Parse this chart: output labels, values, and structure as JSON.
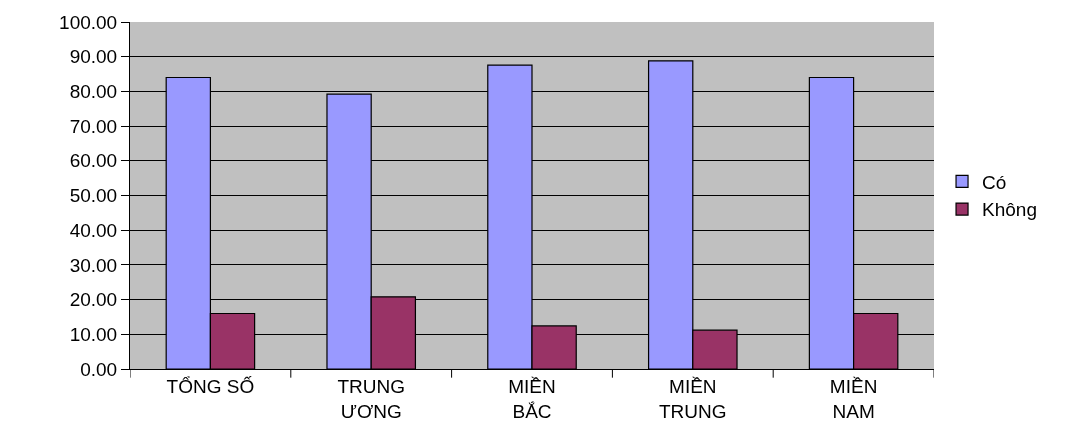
{
  "chart_data": {
    "type": "bar",
    "categories": [
      "TỔNG SỐ",
      "TRUNG\nƯƠNG",
      "MIỀN\nBẮC",
      "MIỀN\nTRUNG",
      "MIỀN\nNAM"
    ],
    "series": [
      {
        "name": "Có",
        "color": "#9999ff",
        "values": [
          84.0,
          79.2,
          87.6,
          88.8,
          84.0
        ]
      },
      {
        "name": "Không",
        "color": "#993366",
        "values": [
          16.0,
          20.8,
          12.4,
          11.2,
          16.0
        ]
      }
    ],
    "ylim": [
      0,
      100
    ],
    "yticks": [
      {
        "value": 0,
        "label": "0.00"
      },
      {
        "value": 10,
        "label": "10.00"
      },
      {
        "value": 20,
        "label": "20.00"
      },
      {
        "value": 30,
        "label": "30.00"
      },
      {
        "value": 40,
        "label": "40.00"
      },
      {
        "value": 50,
        "label": "50.00"
      },
      {
        "value": 60,
        "label": "60.00"
      },
      {
        "value": 70,
        "label": "70.00"
      },
      {
        "value": 80,
        "label": "80.00"
      },
      {
        "value": 90,
        "label": "90.00"
      },
      {
        "value": 100,
        "label": "100.00"
      }
    ],
    "grid": "y",
    "legend": "right"
  }
}
